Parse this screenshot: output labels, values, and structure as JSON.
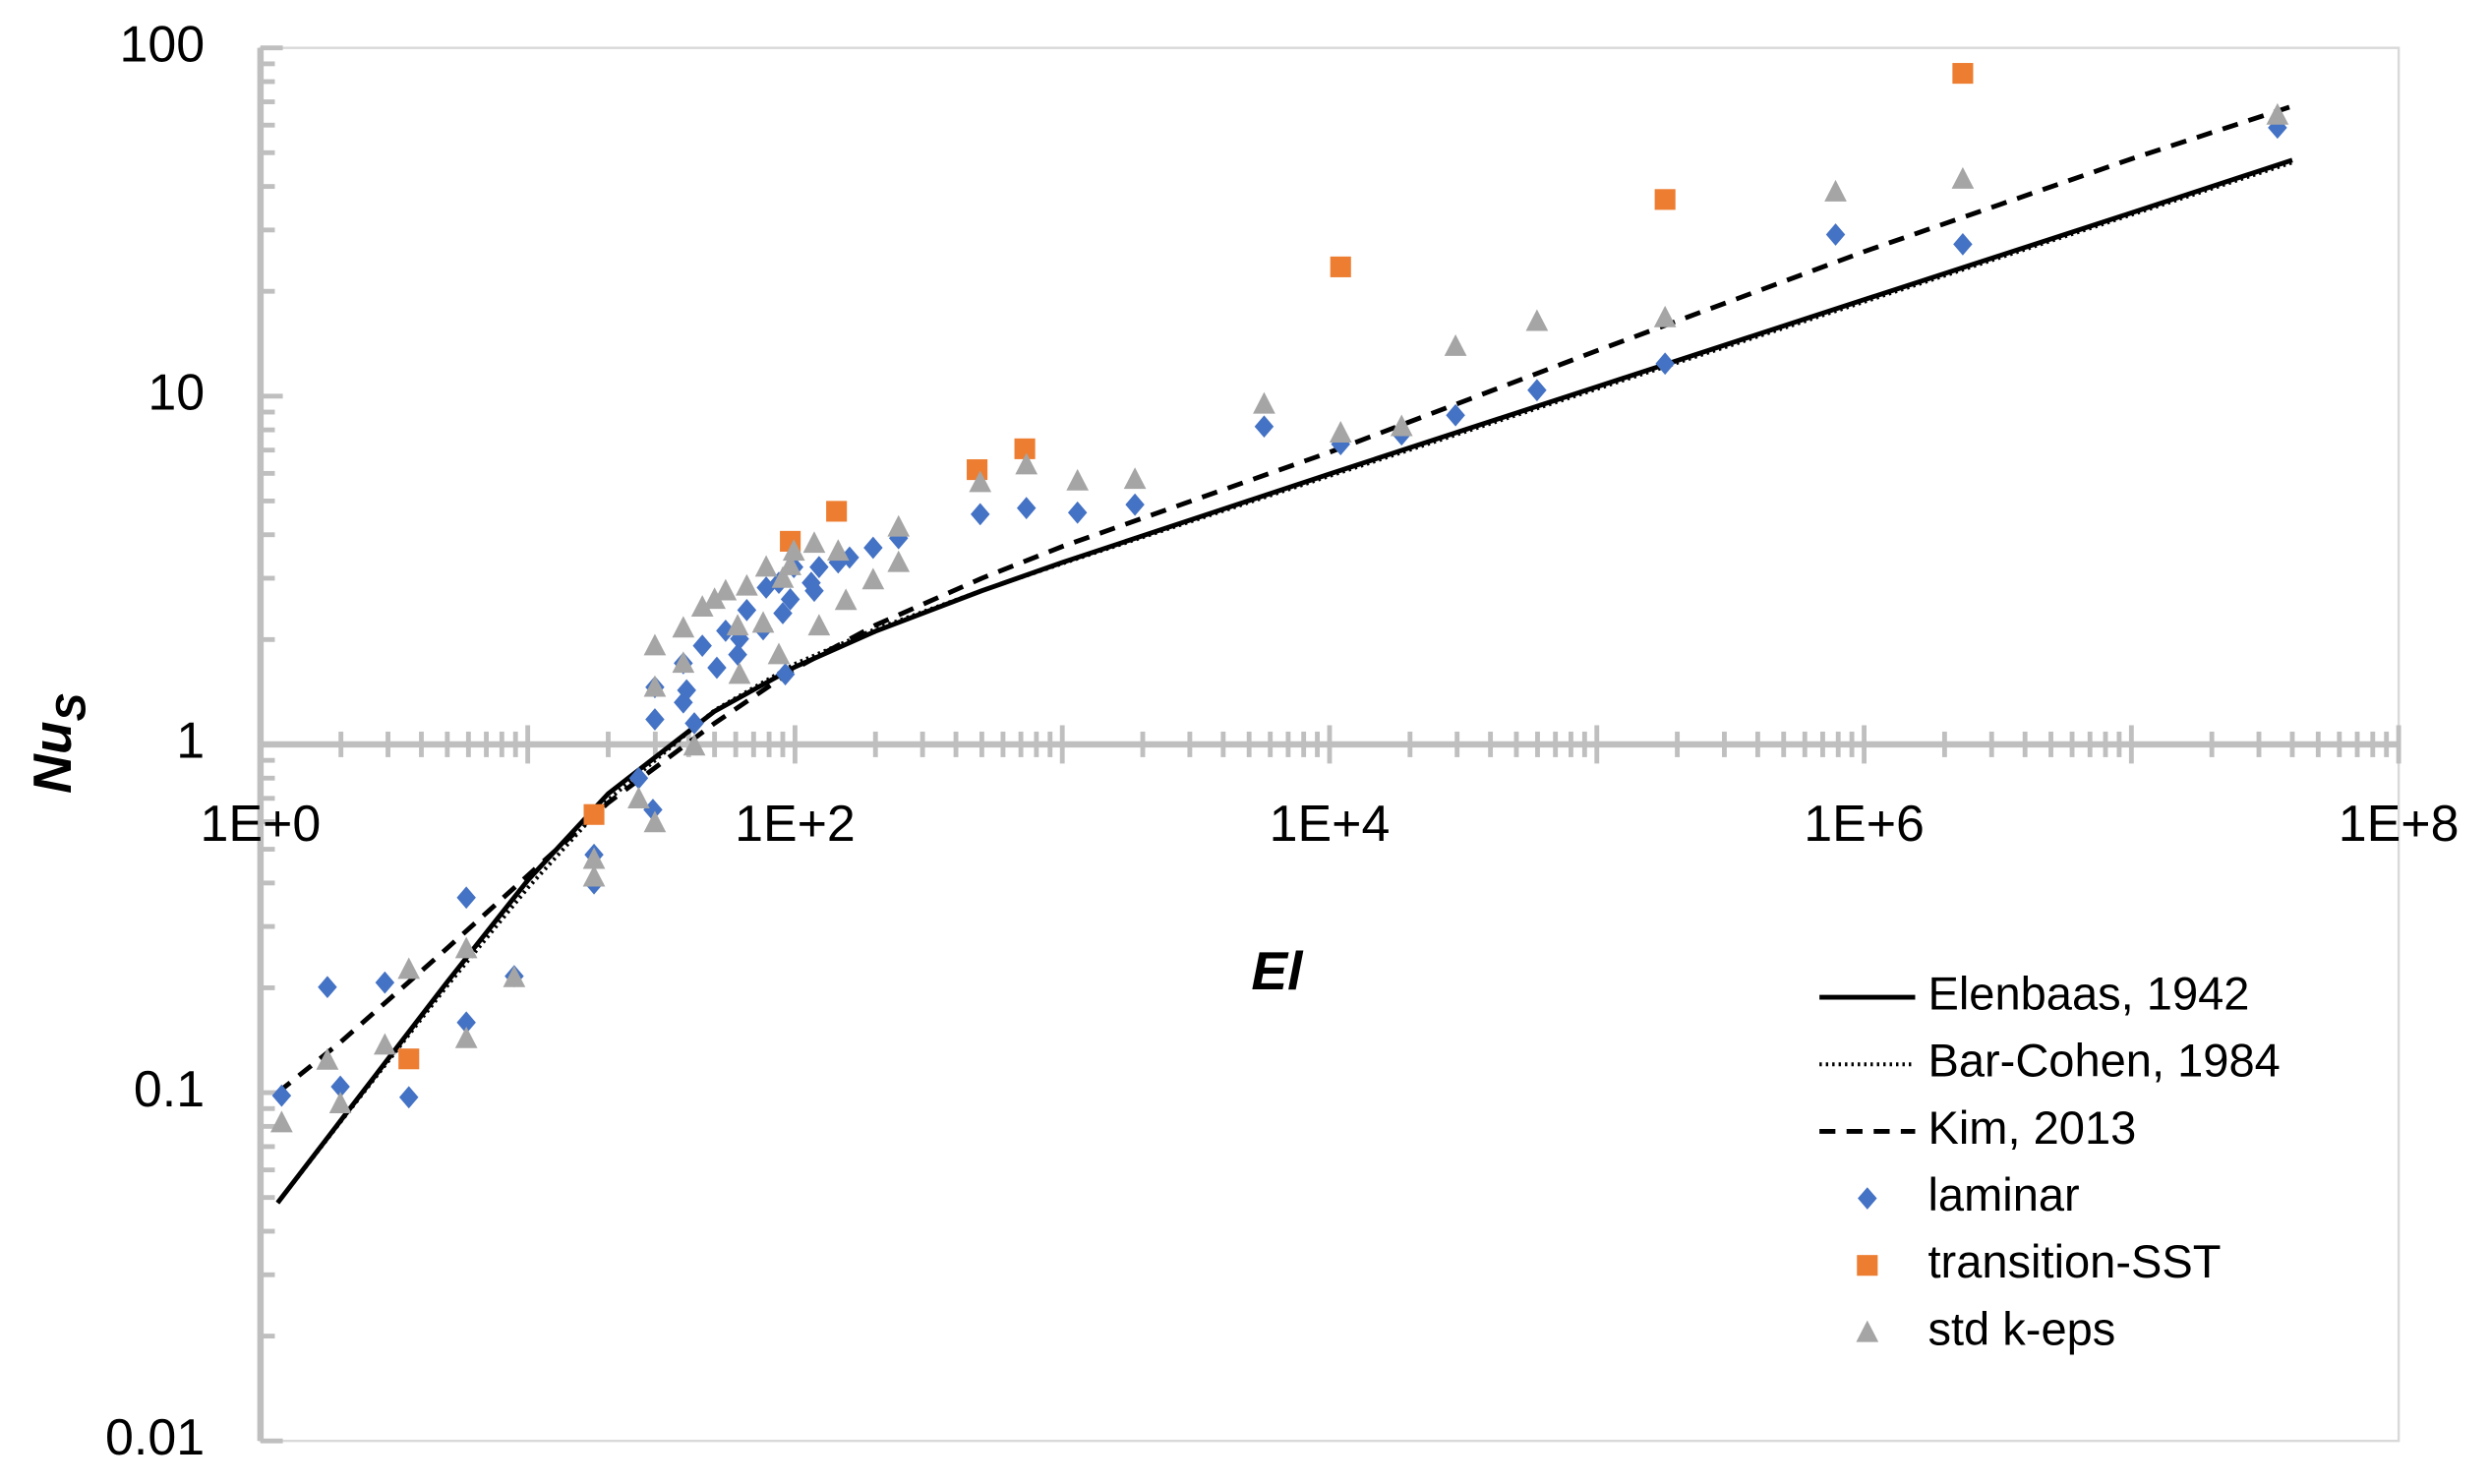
{
  "chart_data": {
    "type": "scatter",
    "xlabel": "El",
    "ylabel": "Nu",
    "ylabel_sub": "S",
    "xscale": "log",
    "yscale": "log",
    "xlim": [
      1,
      100000000
    ],
    "ylim": [
      0.01,
      100
    ],
    "xticks": [
      {
        "value": 1,
        "label": "1E+0"
      },
      {
        "value": 100,
        "label": "1E+2"
      },
      {
        "value": 10000,
        "label": "1E+4"
      },
      {
        "value": 1000000,
        "label": "1E+6"
      },
      {
        "value": 100000000,
        "label": "1E+8"
      }
    ],
    "yticks": [
      0.01,
      0.1,
      1,
      10,
      100
    ],
    "minor_ticks": true,
    "legend": "lower right",
    "series": [
      {
        "name": "Elenbaas, 1942",
        "kind": "line",
        "style": "solid",
        "color": "#000000",
        "x": [
          1.16,
          2,
          5,
          10,
          20,
          50,
          100,
          200,
          500,
          1000,
          10000,
          100000,
          1000000,
          10000000,
          40000000
        ],
        "values": [
          0.0483,
          0.0833,
          0.208,
          0.407,
          0.722,
          1.245,
          1.669,
          2.113,
          2.762,
          3.33,
          5.98,
          10.64,
          18.92,
          33.6,
          47.6
        ]
      },
      {
        "name": "Bar-Cohen, 1984",
        "kind": "line",
        "style": "dotted",
        "color": "#000000",
        "x": [
          1.16,
          2,
          5,
          10,
          20,
          50,
          100,
          200,
          500,
          1000,
          10000,
          100000,
          1000000,
          10000000,
          40000000
        ],
        "values": [
          0.0482,
          0.0827,
          0.2028,
          0.387,
          0.693,
          1.253,
          1.703,
          2.144,
          2.765,
          3.307,
          5.9,
          10.49,
          18.66,
          33.18,
          46.9
        ]
      },
      {
        "name": "Kim, 2013",
        "kind": "line",
        "style": "dashed",
        "color": "#000000",
        "x": [
          1.16,
          2,
          5,
          10,
          20,
          50,
          100,
          200,
          500,
          1000,
          10000,
          100000,
          1000000,
          10000000,
          40000000
        ],
        "values": [
          0.1,
          0.14,
          0.26,
          0.42,
          0.68,
          1.15,
          1.65,
          2.2,
          3.0,
          3.7,
          6.9,
          13.5,
          26,
          48,
          68
        ]
      },
      {
        "name": "laminar",
        "kind": "scatter",
        "marker": "diamond",
        "color": "#4472c4",
        "x": [
          1.2,
          1.78,
          1.99,
          2.92,
          3.59,
          5.89,
          5.89,
          8.9,
          17.7,
          17.7,
          26,
          29.4,
          29.9,
          29.9,
          38.2,
          38.2,
          39.3,
          42,
          45,
          51,
          55,
          61,
          62,
          66,
          76,
          78,
          87,
          90,
          92,
          96,
          99,
          115,
          118,
          123,
          145,
          160,
          196,
          244,
          493,
          734,
          1140,
          1870,
          5690,
          11000,
          18600,
          29600,
          59700,
          180000,
          782000,
          2340000,
          35200000
        ],
        "values": [
          0.098,
          0.201,
          0.104,
          0.207,
          0.097,
          0.363,
          0.159,
          0.216,
          0.399,
          0.482,
          0.8,
          0.649,
          1.46,
          1.18,
          1.32,
          1.71,
          1.43,
          1.15,
          1.92,
          1.66,
          2.12,
          1.81,
          2.01,
          2.43,
          2.14,
          2.82,
          2.91,
          2.38,
          1.59,
          2.61,
          3.23,
          2.91,
          2.76,
          3.23,
          3.33,
          3.44,
          3.67,
          3.91,
          4.58,
          4.77,
          4.63,
          4.88,
          8.18,
          7.28,
          7.76,
          8.81,
          10.4,
          12.4,
          29.1,
          27.3,
          59
        ]
      },
      {
        "name": "transition-SST",
        "kind": "scatter",
        "marker": "square",
        "color": "#ed7d31",
        "x": [
          3.59,
          17.7,
          96,
          143,
          480,
          724,
          11000,
          180000,
          2340000
        ],
        "values": [
          0.125,
          0.629,
          3.83,
          4.67,
          6.15,
          7.06,
          23.5,
          36.7,
          84.5
        ]
      },
      {
        "name": "std k-eps",
        "kind": "scatter",
        "marker": "triangle",
        "color": "#a5a5a5",
        "x": [
          1.2,
          1.78,
          1.99,
          2.92,
          3.59,
          5.89,
          5.89,
          8.9,
          17.7,
          17.7,
          26,
          29.9,
          29.9,
          29.9,
          38.2,
          38.2,
          42,
          45,
          50,
          55,
          61,
          62,
          66,
          76,
          78,
          87,
          90,
          96,
          99,
          118,
          123,
          145,
          155,
          196,
          244,
          244,
          493,
          734,
          1140,
          1870,
          5690,
          11000,
          18600,
          29600,
          59700,
          180000,
          782000,
          2340000,
          35200000
        ],
        "values": [
          0.082,
          0.124,
          0.093,
          0.137,
          0.226,
          0.143,
          0.259,
          0.214,
          0.468,
          0.416,
          0.698,
          0.596,
          1.92,
          1.46,
          2.16,
          1.71,
          0.99,
          2.48,
          2.61,
          2.76,
          2.19,
          1.59,
          2.85,
          2.23,
          3.23,
          1.81,
          3.0,
          3.26,
          3.59,
          3.78,
          2.19,
          3.59,
          2.59,
          2.97,
          4.21,
          3.33,
          5.65,
          6.35,
          5.71,
          5.77,
          9.49,
          7.84,
          8.18,
          13.9,
          16.4,
          16.8,
          38.6,
          42.0,
          64.1
        ]
      }
    ]
  }
}
